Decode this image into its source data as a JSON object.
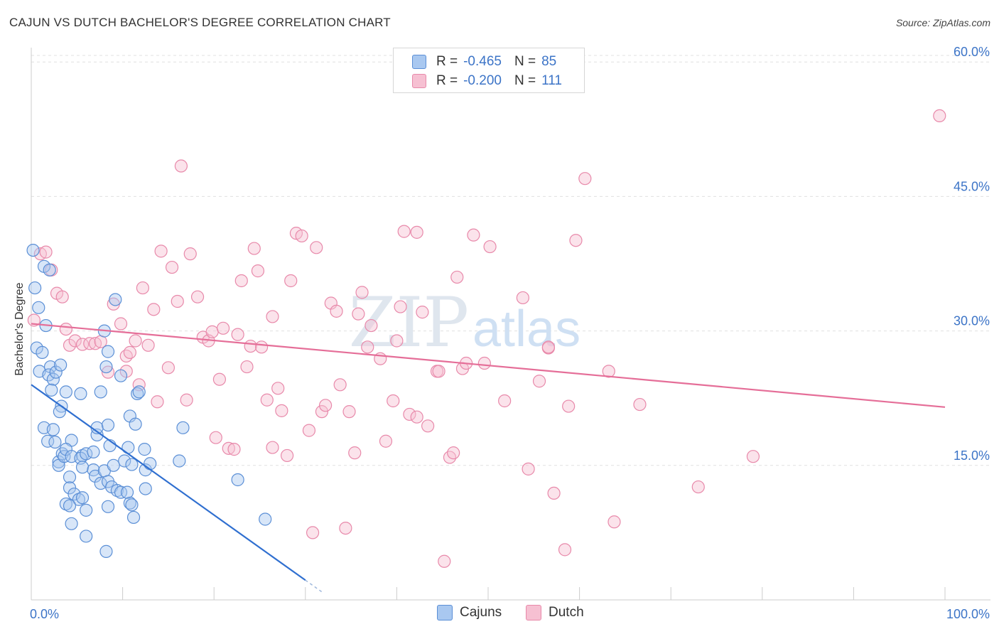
{
  "title": "CAJUN VS DUTCH BACHELOR'S DEGREE CORRELATION CHART",
  "source": "Source: ZipAtlas.com",
  "colors": {
    "cajun_fill": "#a9c8f0",
    "cajun_stroke": "#5b8fd6",
    "cajun_line": "#2f6fd0",
    "dutch_fill": "#f6c0d2",
    "dutch_stroke": "#e889aa",
    "dutch_line": "#e56e98",
    "tick_label": "#3c74c7",
    "grid": "#e0e0e0"
  },
  "legend": {
    "rows": [
      {
        "r_label": "R =",
        "r_value": "-0.465",
        "n_label": "N =",
        "n_value": "85"
      },
      {
        "r_label": "R =",
        "r_value": "-0.200",
        "n_label": "N =",
        "n_value": "111"
      }
    ]
  },
  "bottom_legend": [
    "Cajuns",
    "Dutch"
  ],
  "watermark": {
    "zip": "ZIP",
    "atlas": "atlas"
  },
  "chart_data": {
    "type": "scatter",
    "title": "CAJUN VS DUTCH BACHELOR'S DEGREE CORRELATION CHART",
    "xlabel": "",
    "ylabel": "Bachelor's Degree",
    "xlim": [
      0,
      100
    ],
    "ylim": [
      0,
      62
    ],
    "y_ticks": [
      15,
      30,
      45,
      60
    ],
    "y_tick_labels": [
      "15.0%",
      "30.0%",
      "45.0%",
      "60.0%"
    ],
    "x_tick_labels": [
      "0.0%",
      "100.0%"
    ],
    "grid": true,
    "legend_position": "top-center",
    "series": [
      {
        "name": "Cajuns",
        "r": -0.465,
        "n": 85,
        "trend": {
          "x": [
            0,
            30
          ],
          "y": [
            24.0,
            2.2
          ],
          "dashed_to_x": 32
        },
        "points": [
          [
            0.2,
            39.0
          ],
          [
            0.4,
            34.8
          ],
          [
            0.8,
            32.6
          ],
          [
            0.6,
            28.1
          ],
          [
            1.2,
            27.6
          ],
          [
            1.6,
            30.6
          ],
          [
            1.4,
            37.2
          ],
          [
            2.0,
            36.8
          ],
          [
            0.9,
            25.5
          ],
          [
            2.1,
            26.0
          ],
          [
            1.9,
            25.1
          ],
          [
            2.4,
            24.6
          ],
          [
            2.7,
            25.4
          ],
          [
            3.2,
            26.2
          ],
          [
            2.2,
            23.4
          ],
          [
            3.8,
            23.2
          ],
          [
            5.4,
            23.0
          ],
          [
            3.3,
            21.6
          ],
          [
            3.1,
            21.0
          ],
          [
            1.4,
            19.2
          ],
          [
            2.4,
            19.0
          ],
          [
            1.8,
            17.7
          ],
          [
            2.6,
            17.6
          ],
          [
            4.4,
            17.8
          ],
          [
            3.0,
            15.4
          ],
          [
            3.0,
            15.0
          ],
          [
            3.4,
            16.3
          ],
          [
            3.6,
            16.0
          ],
          [
            3.8,
            16.8
          ],
          [
            4.4,
            16.0
          ],
          [
            5.6,
            16.1
          ],
          [
            5.4,
            15.8
          ],
          [
            6.0,
            16.3
          ],
          [
            6.8,
            16.5
          ],
          [
            4.2,
            13.7
          ],
          [
            5.6,
            14.8
          ],
          [
            6.8,
            14.5
          ],
          [
            7.0,
            13.8
          ],
          [
            8.0,
            14.4
          ],
          [
            7.6,
            13.0
          ],
          [
            8.4,
            13.2
          ],
          [
            8.8,
            12.6
          ],
          [
            9.4,
            12.2
          ],
          [
            9.8,
            12.0
          ],
          [
            4.2,
            12.5
          ],
          [
            4.7,
            11.8
          ],
          [
            5.2,
            11.2
          ],
          [
            5.6,
            11.4
          ],
          [
            3.8,
            10.7
          ],
          [
            4.2,
            10.5
          ],
          [
            6.0,
            10.0
          ],
          [
            8.4,
            10.4
          ],
          [
            4.4,
            8.5
          ],
          [
            6.0,
            7.1
          ],
          [
            8.2,
            5.4
          ],
          [
            10.8,
            10.8
          ],
          [
            11.0,
            10.6
          ],
          [
            11.2,
            9.2
          ],
          [
            12.5,
            14.5
          ],
          [
            12.5,
            12.4
          ],
          [
            10.5,
            12.0
          ],
          [
            10.2,
            15.5
          ],
          [
            11.0,
            15.1
          ],
          [
            13.0,
            15.2
          ],
          [
            9.0,
            15.0
          ],
          [
            8.6,
            17.2
          ],
          [
            10.6,
            17.0
          ],
          [
            12.4,
            16.8
          ],
          [
            7.2,
            18.4
          ],
          [
            7.2,
            19.2
          ],
          [
            8.4,
            19.5
          ],
          [
            10.8,
            20.5
          ],
          [
            11.4,
            19.6
          ],
          [
            11.6,
            23.0
          ],
          [
            11.8,
            23.2
          ],
          [
            7.6,
            23.2
          ],
          [
            9.8,
            25.0
          ],
          [
            8.2,
            26.0
          ],
          [
            8.4,
            27.7
          ],
          [
            8.0,
            30.0
          ],
          [
            9.2,
            33.5
          ],
          [
            16.6,
            19.2
          ],
          [
            16.2,
            15.5
          ],
          [
            22.6,
            13.4
          ],
          [
            25.6,
            9.0
          ]
        ]
      },
      {
        "name": "Dutch",
        "r": -0.2,
        "n": 111,
        "trend": {
          "x": [
            0,
            100
          ],
          "y": [
            30.8,
            21.5
          ]
        },
        "points": [
          [
            0.3,
            31.2
          ],
          [
            1.0,
            38.6
          ],
          [
            1.6,
            38.8
          ],
          [
            2.2,
            36.8
          ],
          [
            2.8,
            34.2
          ],
          [
            3.4,
            33.8
          ],
          [
            3.8,
            30.2
          ],
          [
            4.2,
            28.4
          ],
          [
            4.8,
            28.9
          ],
          [
            5.6,
            28.5
          ],
          [
            6.4,
            28.6
          ],
          [
            7.0,
            28.6
          ],
          [
            7.6,
            28.8
          ],
          [
            8.4,
            25.4
          ],
          [
            9.0,
            33.0
          ],
          [
            9.8,
            30.8
          ],
          [
            10.4,
            27.2
          ],
          [
            10.8,
            27.6
          ],
          [
            11.4,
            28.9
          ],
          [
            11.8,
            24.0
          ],
          [
            12.2,
            34.8
          ],
          [
            12.8,
            28.4
          ],
          [
            13.4,
            32.4
          ],
          [
            13.8,
            22.1
          ],
          [
            14.2,
            38.9
          ],
          [
            15.0,
            25.9
          ],
          [
            15.4,
            37.1
          ],
          [
            16.0,
            33.3
          ],
          [
            16.4,
            48.4
          ],
          [
            17.0,
            22.3
          ],
          [
            17.4,
            38.6
          ],
          [
            18.2,
            33.8
          ],
          [
            18.8,
            29.3
          ],
          [
            19.4,
            28.9
          ],
          [
            19.8,
            29.9
          ],
          [
            20.2,
            18.1
          ],
          [
            20.6,
            24.6
          ],
          [
            21.0,
            30.3
          ],
          [
            21.6,
            16.9
          ],
          [
            22.2,
            16.8
          ],
          [
            22.6,
            29.6
          ],
          [
            23.0,
            35.6
          ],
          [
            23.6,
            26.0
          ],
          [
            24.0,
            28.3
          ],
          [
            24.4,
            39.2
          ],
          [
            24.8,
            36.7
          ],
          [
            25.2,
            28.2
          ],
          [
            25.8,
            22.3
          ],
          [
            26.4,
            31.6
          ],
          [
            27.0,
            23.6
          ],
          [
            27.4,
            21.1
          ],
          [
            28.0,
            16.1
          ],
          [
            28.4,
            35.6
          ],
          [
            29.0,
            40.9
          ],
          [
            29.6,
            40.6
          ],
          [
            30.4,
            18.9
          ],
          [
            30.8,
            7.5
          ],
          [
            31.2,
            39.3
          ],
          [
            31.8,
            21.0
          ],
          [
            32.2,
            21.7
          ],
          [
            32.8,
            33.1
          ],
          [
            33.4,
            32.2
          ],
          [
            33.8,
            24.0
          ],
          [
            34.4,
            8.0
          ],
          [
            34.8,
            21.0
          ],
          [
            35.4,
            16.4
          ],
          [
            35.8,
            31.9
          ],
          [
            36.2,
            34.3
          ],
          [
            36.8,
            28.2
          ],
          [
            37.2,
            30.6
          ],
          [
            38.2,
            26.9
          ],
          [
            38.8,
            17.7
          ],
          [
            39.6,
            22.2
          ],
          [
            40.0,
            28.9
          ],
          [
            40.4,
            32.7
          ],
          [
            40.8,
            41.1
          ],
          [
            41.4,
            20.7
          ],
          [
            42.2,
            41.0
          ],
          [
            42.8,
            32.1
          ],
          [
            43.4,
            19.4
          ],
          [
            44.4,
            25.5
          ],
          [
            45.2,
            4.3
          ],
          [
            45.8,
            15.9
          ],
          [
            46.2,
            16.4
          ],
          [
            46.6,
            36.0
          ],
          [
            47.2,
            25.8
          ],
          [
            47.6,
            26.4
          ],
          [
            48.4,
            40.7
          ],
          [
            49.6,
            26.4
          ],
          [
            50.2,
            39.4
          ],
          [
            51.8,
            22.2
          ],
          [
            53.8,
            33.7
          ],
          [
            54.4,
            14.6
          ],
          [
            55.6,
            24.4
          ],
          [
            56.6,
            28.1
          ],
          [
            57.2,
            11.9
          ],
          [
            58.4,
            5.6
          ],
          [
            58.8,
            21.6
          ],
          [
            59.6,
            40.1
          ],
          [
            60.6,
            47.0
          ],
          [
            63.2,
            25.5
          ],
          [
            63.8,
            8.7
          ],
          [
            66.6,
            21.8
          ],
          [
            73.0,
            12.6
          ],
          [
            79.0,
            16.0
          ],
          [
            99.4,
            54.0
          ],
          [
            56.6,
            28.2
          ],
          [
            44.6,
            25.5
          ],
          [
            10.4,
            25.5
          ],
          [
            26.4,
            17.0
          ],
          [
            42.2,
            20.4
          ]
        ]
      }
    ]
  }
}
